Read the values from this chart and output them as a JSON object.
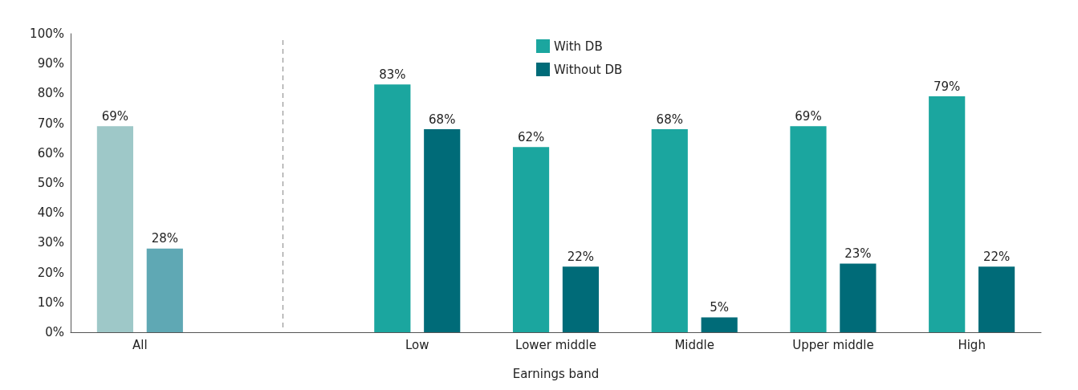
{
  "chart_data": {
    "type": "bar",
    "xlabel": "Earnings band",
    "categories": [
      "All",
      null,
      "Low",
      "Lower middle",
      "Middle",
      "Upper middle",
      "High"
    ],
    "series": [
      {
        "name": "With DB",
        "color": "#1ba69f",
        "colors": [
          "#9ec8c8",
          null,
          "#1ba69f",
          "#1ba69f",
          "#1ba69f",
          "#1ba69f",
          "#1ba69f"
        ],
        "values": [
          69,
          null,
          83,
          62,
          68,
          69,
          79
        ],
        "value_labels": [
          "69%",
          null,
          "83%",
          "62%",
          "68%",
          "69%",
          "79%"
        ]
      },
      {
        "name": "Without DB",
        "color": "#006b78",
        "colors": [
          "#5fa8b4",
          null,
          "#006b78",
          "#006b78",
          "#006b78",
          "#006b78",
          "#006b78"
        ],
        "values": [
          28,
          null,
          68,
          22,
          5,
          23,
          22
        ],
        "value_labels": [
          "28%",
          null,
          "68%",
          "22%",
          "5%",
          "23%",
          "22%"
        ]
      }
    ],
    "ylim": [
      0,
      100
    ],
    "yticks": [
      {
        "value": 0,
        "label": "0%"
      },
      {
        "value": 10,
        "label": "10%"
      },
      {
        "value": 20,
        "label": "20%"
      },
      {
        "value": 30,
        "label": "30%"
      },
      {
        "value": 40,
        "label": "40%"
      },
      {
        "value": 50,
        "label": "50%"
      },
      {
        "value": 60,
        "label": "60%"
      },
      {
        "value": 70,
        "label": "70%"
      },
      {
        "value": 80,
        "label": "80%"
      },
      {
        "value": 90,
        "label": "90%"
      },
      {
        "value": 100,
        "label": "100%"
      }
    ],
    "grid": false,
    "legend": "top"
  }
}
